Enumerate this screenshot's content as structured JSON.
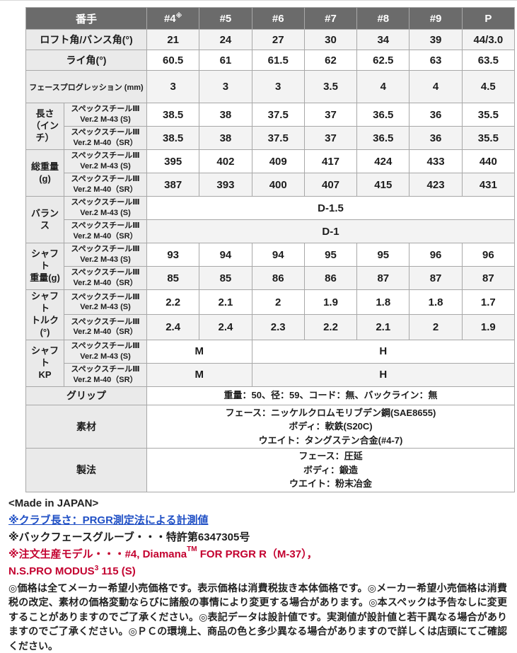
{
  "colors": {
    "header_bg": "#6b6b6b",
    "label_bg": "#eaeaea",
    "row_shade": "#f3f3f3",
    "border": "#a8a8a8",
    "link_blue": "#1f4fc5",
    "note_red": "#c3002f"
  },
  "table": {
    "header": {
      "label": "番手",
      "columns": [
        {
          "label": "#4",
          "sup": "※"
        },
        {
          "label": "#5"
        },
        {
          "label": "#6"
        },
        {
          "label": "#7"
        },
        {
          "label": "#8"
        },
        {
          "label": "#9"
        },
        {
          "label": "P"
        }
      ]
    },
    "shaft_models": {
      "s": [
        "スペックスチールⅢ",
        "Ver.2 M-43 (S)"
      ],
      "sr": [
        "スペックスチールⅢ",
        "Ver.2 M-40（SR）"
      ]
    },
    "rows": [
      {
        "type": "simple",
        "id": "loft",
        "label": "ロフト角/バンス角(°)",
        "values": [
          "21",
          "24",
          "27",
          "30",
          "34",
          "39",
          "44/3.0"
        ]
      },
      {
        "type": "simple",
        "id": "lie",
        "label": "ライ角(°)",
        "values": [
          "60.5",
          "61",
          "61.5",
          "62",
          "62.5",
          "63",
          "63.5"
        ]
      },
      {
        "type": "simple",
        "id": "fp",
        "label": "フェースプログレッション (mm)",
        "small_label": true,
        "values": [
          "3",
          "3",
          "3",
          "3.5",
          "4",
          "4",
          "4.5"
        ]
      },
      {
        "type": "group",
        "id": "length",
        "label_lines": [
          "長さ",
          "（インチ）"
        ],
        "subrows": [
          {
            "shaft": "s",
            "values": [
              "38.5",
              "38",
              "37.5",
              "37",
              "36.5",
              "36",
              "35.5"
            ]
          },
          {
            "shaft": "sr",
            "values": [
              "38.5",
              "38",
              "37.5",
              "37",
              "36.5",
              "36",
              "35.5"
            ]
          }
        ]
      },
      {
        "type": "group",
        "id": "total-weight",
        "label_lines": [
          "総重量(g)"
        ],
        "subrows": [
          {
            "shaft": "s",
            "values": [
              "395",
              "402",
              "409",
              "417",
              "424",
              "433",
              "440"
            ]
          },
          {
            "shaft": "sr",
            "values": [
              "387",
              "393",
              "400",
              "407",
              "415",
              "423",
              "431"
            ]
          }
        ]
      },
      {
        "type": "group",
        "id": "balance",
        "label_lines": [
          "バランス"
        ],
        "subrows": [
          {
            "shaft": "s",
            "span_value": "D-1.5"
          },
          {
            "shaft": "sr",
            "span_value": "D-1"
          }
        ]
      },
      {
        "type": "group",
        "id": "shaft-weight",
        "label_lines": [
          "シャフト",
          "重量(g)"
        ],
        "subrows": [
          {
            "shaft": "s",
            "values": [
              "93",
              "94",
              "94",
              "95",
              "95",
              "96",
              "96"
            ]
          },
          {
            "shaft": "sr",
            "values": [
              "85",
              "85",
              "86",
              "86",
              "87",
              "87",
              "87"
            ]
          }
        ]
      },
      {
        "type": "group",
        "id": "shaft-torque",
        "label_lines": [
          "シャフト",
          "トルク(°)"
        ],
        "subrows": [
          {
            "shaft": "s",
            "values": [
              "2.2",
              "2.1",
              "2",
              "1.9",
              "1.8",
              "1.8",
              "1.7"
            ]
          },
          {
            "shaft": "sr",
            "values": [
              "2.4",
              "2.4",
              "2.3",
              "2.2",
              "2.1",
              "2",
              "1.9"
            ]
          }
        ]
      },
      {
        "type": "group",
        "id": "shaft-kp",
        "label_lines": [
          "シャフト",
          "KP"
        ],
        "subrows": [
          {
            "shaft": "s",
            "spans": [
              {
                "text": "M",
                "cols": 2
              },
              {
                "text": "H",
                "cols": 5
              }
            ]
          },
          {
            "shaft": "sr",
            "spans": [
              {
                "text": "M",
                "cols": 2
              },
              {
                "text": "H",
                "cols": 5
              }
            ]
          }
        ]
      },
      {
        "type": "full",
        "id": "grip",
        "label": "グリップ",
        "lines": [
          "重量：50、径：59、コード：無、バックライン：無"
        ]
      },
      {
        "type": "full",
        "id": "material",
        "label": "素材",
        "lines": [
          "フェース：ニッケルクロムモリブデン鋼(SAE8655)",
          "ボディ：軟鉄(S20C)",
          "ウエイト：タングステン合金(#4-7)"
        ]
      },
      {
        "type": "full",
        "id": "method",
        "label": "製法",
        "lines": [
          "フェース：圧延",
          "ボディ：鍛造",
          "ウエイト：粉末冶金"
        ]
      }
    ]
  },
  "footer": {
    "made_in": "<Made in JAPAN>",
    "club_length_note": "※クラブ長さ：PRGR測定法による計測値",
    "backface_note": "※バックフェースグルーブ・・・特許第6347305号",
    "custom_note": {
      "pre": "※注文生産モデル・・・#4, Diamana",
      "sup": "TM",
      "post": " FOR PRGR R（M-37），"
    },
    "custom_note2": {
      "pre": "N.S.PRO MODUS",
      "sup": "3",
      "post": " 115 (S)"
    },
    "disclaimer": "◎価格は全てメーカー希望小売価格です。表示価格は消費税抜き本体価格です。◎メーカー希望小売価格は消費税の改定、素材の価格変動ならびに諸般の事情により変更する場合があります。◎本スペックは予告なしに変更することがありますのでご了承ください。◎表記データは設計値です。実測値が設計値と若干異なる場合がありますのでご了承ください。◎ＰＣの環境上、商品の色と多少異なる場合がありますので詳しくは店頭にてご確認ください。"
  }
}
